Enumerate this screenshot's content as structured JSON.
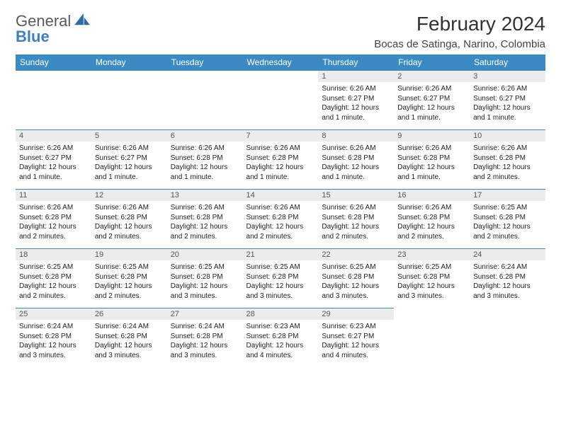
{
  "branding": {
    "word1": "General",
    "word2": "Blue",
    "colors": {
      "text_gray": "#5a5a5a",
      "brand_blue": "#3b7fc4"
    }
  },
  "header": {
    "month_title": "February 2024",
    "location": "Bocas de Satinga, Narino, Colombia"
  },
  "calendar": {
    "type": "table",
    "header_bg": "#3b8ac4",
    "header_fg": "#ffffff",
    "day_header_bg": "#ececec",
    "rule_color": "#3b8ac4",
    "columns": [
      "Sunday",
      "Monday",
      "Tuesday",
      "Wednesday",
      "Thursday",
      "Friday",
      "Saturday"
    ],
    "first_weekday_index": 4,
    "days_in_month": 29,
    "days": {
      "1": {
        "sunrise": "6:26 AM",
        "sunset": "6:27 PM",
        "daylight": "12 hours and 1 minute."
      },
      "2": {
        "sunrise": "6:26 AM",
        "sunset": "6:27 PM",
        "daylight": "12 hours and 1 minute."
      },
      "3": {
        "sunrise": "6:26 AM",
        "sunset": "6:27 PM",
        "daylight": "12 hours and 1 minute."
      },
      "4": {
        "sunrise": "6:26 AM",
        "sunset": "6:27 PM",
        "daylight": "12 hours and 1 minute."
      },
      "5": {
        "sunrise": "6:26 AM",
        "sunset": "6:27 PM",
        "daylight": "12 hours and 1 minute."
      },
      "6": {
        "sunrise": "6:26 AM",
        "sunset": "6:28 PM",
        "daylight": "12 hours and 1 minute."
      },
      "7": {
        "sunrise": "6:26 AM",
        "sunset": "6:28 PM",
        "daylight": "12 hours and 1 minute."
      },
      "8": {
        "sunrise": "6:26 AM",
        "sunset": "6:28 PM",
        "daylight": "12 hours and 1 minute."
      },
      "9": {
        "sunrise": "6:26 AM",
        "sunset": "6:28 PM",
        "daylight": "12 hours and 1 minute."
      },
      "10": {
        "sunrise": "6:26 AM",
        "sunset": "6:28 PM",
        "daylight": "12 hours and 2 minutes."
      },
      "11": {
        "sunrise": "6:26 AM",
        "sunset": "6:28 PM",
        "daylight": "12 hours and 2 minutes."
      },
      "12": {
        "sunrise": "6:26 AM",
        "sunset": "6:28 PM",
        "daylight": "12 hours and 2 minutes."
      },
      "13": {
        "sunrise": "6:26 AM",
        "sunset": "6:28 PM",
        "daylight": "12 hours and 2 minutes."
      },
      "14": {
        "sunrise": "6:26 AM",
        "sunset": "6:28 PM",
        "daylight": "12 hours and 2 minutes."
      },
      "15": {
        "sunrise": "6:26 AM",
        "sunset": "6:28 PM",
        "daylight": "12 hours and 2 minutes."
      },
      "16": {
        "sunrise": "6:26 AM",
        "sunset": "6:28 PM",
        "daylight": "12 hours and 2 minutes."
      },
      "17": {
        "sunrise": "6:25 AM",
        "sunset": "6:28 PM",
        "daylight": "12 hours and 2 minutes."
      },
      "18": {
        "sunrise": "6:25 AM",
        "sunset": "6:28 PM",
        "daylight": "12 hours and 2 minutes."
      },
      "19": {
        "sunrise": "6:25 AM",
        "sunset": "6:28 PM",
        "daylight": "12 hours and 2 minutes."
      },
      "20": {
        "sunrise": "6:25 AM",
        "sunset": "6:28 PM",
        "daylight": "12 hours and 3 minutes."
      },
      "21": {
        "sunrise": "6:25 AM",
        "sunset": "6:28 PM",
        "daylight": "12 hours and 3 minutes."
      },
      "22": {
        "sunrise": "6:25 AM",
        "sunset": "6:28 PM",
        "daylight": "12 hours and 3 minutes."
      },
      "23": {
        "sunrise": "6:25 AM",
        "sunset": "6:28 PM",
        "daylight": "12 hours and 3 minutes."
      },
      "24": {
        "sunrise": "6:24 AM",
        "sunset": "6:28 PM",
        "daylight": "12 hours and 3 minutes."
      },
      "25": {
        "sunrise": "6:24 AM",
        "sunset": "6:28 PM",
        "daylight": "12 hours and 3 minutes."
      },
      "26": {
        "sunrise": "6:24 AM",
        "sunset": "6:28 PM",
        "daylight": "12 hours and 3 minutes."
      },
      "27": {
        "sunrise": "6:24 AM",
        "sunset": "6:28 PM",
        "daylight": "12 hours and 3 minutes."
      },
      "28": {
        "sunrise": "6:23 AM",
        "sunset": "6:28 PM",
        "daylight": "12 hours and 4 minutes."
      },
      "29": {
        "sunrise": "6:23 AM",
        "sunset": "6:27 PM",
        "daylight": "12 hours and 4 minutes."
      }
    },
    "labels": {
      "sunrise": "Sunrise:",
      "sunset": "Sunset:",
      "daylight": "Daylight:"
    }
  }
}
